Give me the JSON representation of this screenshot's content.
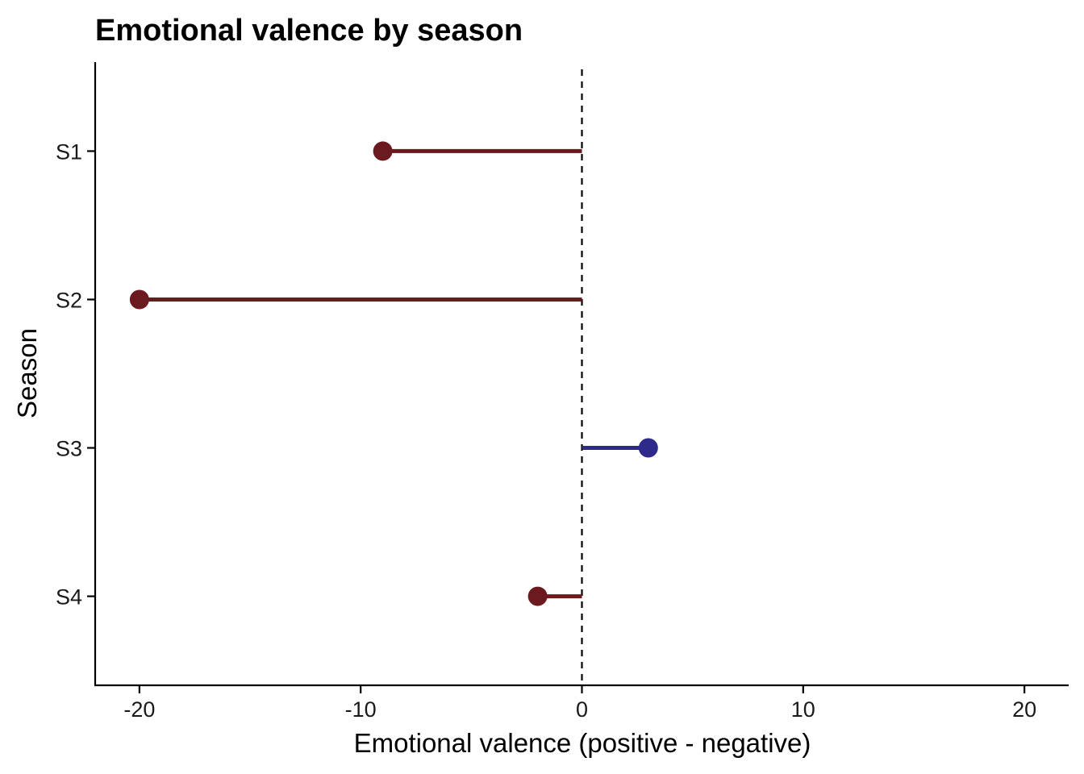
{
  "chart_data": {
    "type": "lollipop",
    "title": "Emotional valence by season",
    "xlabel": "Emotional valence (positive - negative)",
    "ylabel": "Season",
    "xlim": [
      -22,
      22
    ],
    "xticks": [
      -20,
      -10,
      0,
      10,
      20
    ],
    "reference_line": 0,
    "categories": [
      "S1",
      "S2",
      "S3",
      "S4"
    ],
    "values": [
      -9,
      -20,
      3,
      -2
    ],
    "colors": {
      "negative": "#6b1a1f",
      "positive": "#2e2a8c"
    },
    "grid": false,
    "legend": "none"
  }
}
